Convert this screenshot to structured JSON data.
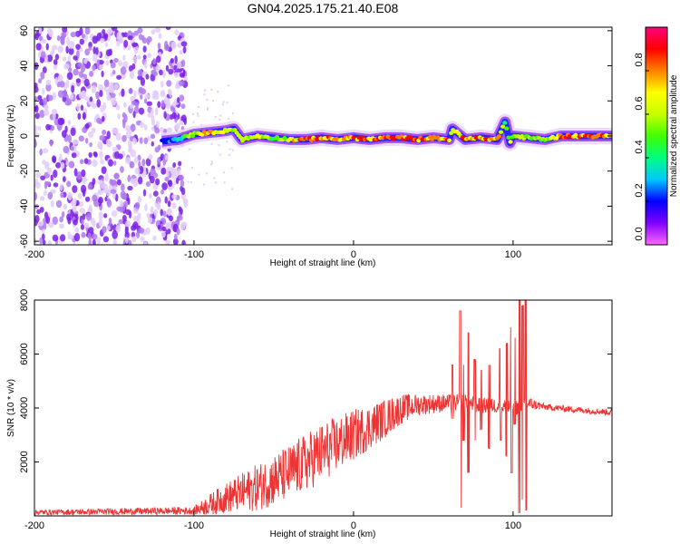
{
  "chart_data": [
    {
      "type": "heatmap",
      "title": "GN04.2025.175.21.40.E08",
      "xlabel": "Height of straight line (km)",
      "ylabel": "Frequency (Hz)",
      "xlim": [
        -200,
        162
      ],
      "ylim": [
        -62,
        62
      ],
      "xticks": [
        "-200",
        "-100",
        "0",
        "100"
      ],
      "yticks": [
        "60",
        "40",
        "20",
        "0",
        "-20",
        "-40",
        "-60"
      ],
      "grid": false,
      "colorbar": {
        "label": "Normalized spectral amplitude",
        "range": [
          0,
          1
        ],
        "ticks": [
          "0.0",
          "0.2",
          "0.4",
          "0.6",
          "0.8"
        ],
        "colormap": [
          "#ff66ff",
          "#8000ff",
          "#0000ff",
          "#00c8ff",
          "#00ff80",
          "#40ff00",
          "#c8ff00",
          "#ffff00",
          "#ff8000",
          "#ff0000",
          "#ff0080"
        ]
      },
      "noise_region_km": [
        -200,
        -105
      ],
      "trace": {
        "x": [
          -120,
          -110,
          -100,
          -90,
          -80,
          -75,
          -70,
          -60,
          -50,
          -40,
          -30,
          -20,
          -10,
          0,
          10,
          20,
          30,
          40,
          50,
          60,
          62,
          70,
          80,
          90,
          95,
          98,
          100,
          110,
          120,
          130,
          140,
          150,
          162
        ],
        "y": [
          -3,
          -2,
          1,
          2,
          3,
          4,
          -2,
          0,
          -1,
          -2,
          -2,
          -1,
          -2,
          -1,
          -2,
          -1,
          -1,
          -2,
          -1,
          -2,
          4,
          -2,
          -1,
          -2,
          8,
          -4,
          0,
          -1,
          -2,
          0,
          0,
          0,
          0
        ],
        "peak_amplitude": [
          0.2,
          0.4,
          0.7,
          0.8,
          0.7,
          0.6,
          0.6,
          0.7,
          0.5,
          0.7,
          0.9,
          0.9,
          0.85,
          0.95,
          0.9,
          0.9,
          0.9,
          0.9,
          0.85,
          0.9,
          0.7,
          0.9,
          0.9,
          0.9,
          0.5,
          0.6,
          0.7,
          0.6,
          0.6,
          0.85,
          0.9,
          0.9,
          0.95
        ]
      }
    },
    {
      "type": "line",
      "title": "",
      "xlabel": "Height of straight line (km)",
      "ylabel": "SNR (10 * v/v)",
      "xlim": [
        -200,
        162
      ],
      "ylim": [
        0,
        8000
      ],
      "xticks": [
        "-200",
        "-100",
        "0",
        "100"
      ],
      "yticks": [
        "8000",
        "6000",
        "4000",
        "2000"
      ],
      "grid": false,
      "color": "#ee3333",
      "envelope": {
        "x": [
          -200,
          -100,
          -90,
          -80,
          -60,
          -40,
          -20,
          0,
          20,
          30,
          40,
          60,
          70,
          80,
          90,
          100,
          110,
          120,
          140,
          162
        ],
        "baseline": [
          100,
          150,
          300,
          500,
          800,
          1300,
          2000,
          2700,
          3400,
          3800,
          4000,
          4100,
          4100,
          4000,
          4000,
          3900,
          4100,
          4000,
          3900,
          3800
        ],
        "noise": [
          120,
          180,
          500,
          700,
          1100,
          1300,
          1400,
          1200,
          900,
          700,
          500,
          400,
          400,
          350,
          350,
          400,
          300,
          150,
          150,
          150
        ]
      },
      "spikes": [
        {
          "x": 62,
          "low": 3600,
          "high": 5600
        },
        {
          "x": 67,
          "low": 300,
          "high": 7600
        },
        {
          "x": 69,
          "low": 2800,
          "high": 5600
        },
        {
          "x": 72,
          "low": 1600,
          "high": 6800
        },
        {
          "x": 76,
          "low": 2800,
          "high": 5800
        },
        {
          "x": 80,
          "low": 3200,
          "high": 5400
        },
        {
          "x": 85,
          "low": 2500,
          "high": 5600
        },
        {
          "x": 92,
          "low": 2800,
          "high": 6200
        },
        {
          "x": 96,
          "low": 2200,
          "high": 6400
        },
        {
          "x": 99,
          "low": 1600,
          "high": 7000
        },
        {
          "x": 101,
          "low": 3400,
          "high": 6600
        },
        {
          "x": 104,
          "low": 100,
          "high": 8200
        },
        {
          "x": 106,
          "low": 600,
          "high": 7800
        },
        {
          "x": 108,
          "low": 200,
          "high": 8200
        }
      ]
    }
  ]
}
